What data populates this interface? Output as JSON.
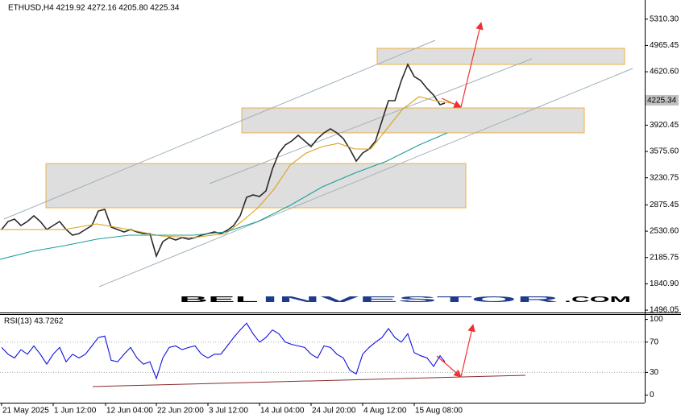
{
  "chart_data": [
    {
      "type": "line",
      "title": "ETHUSD,H4  4219.92 4272.16 4205.80 4225.34",
      "last_price_label": "4225.34",
      "watermark": [
        "BEL",
        "INVESTOR",
        ".COM"
      ],
      "xlim": [
        0,
        800
      ],
      "ylim": [
        1465,
        5540
      ],
      "yticks": [
        {
          "value": 5310.3,
          "label": "5310.30"
        },
        4965.45,
        {
          "value": 4620.6,
          "label": "4620.60"
        },
        3920.45,
        {
          "value": 3575.6,
          "label": "3575.60"
        },
        3230.75,
        2875.45,
        {
          "value": 2530.6,
          "label": "2530.60"
        },
        2185.75,
        {
          "value": 1840.9,
          "label": "1840.90"
        },
        1496.05
      ],
      "series": [
        {
          "color": "#2a2a2a",
          "x": [
            2,
            10,
            18,
            26,
            34,
            42,
            50,
            58,
            66,
            74,
            82,
            90,
            98,
            106,
            114,
            122,
            130,
            138,
            146,
            154,
            162,
            170,
            178,
            186,
            194,
            202,
            210,
            218,
            226,
            234,
            242,
            250,
            258,
            266,
            274,
            282,
            290,
            298,
            306,
            314,
            322,
            330,
            338,
            346,
            354,
            362,
            370,
            378,
            386,
            394,
            402,
            410,
            418,
            426,
            434,
            442,
            450,
            458,
            466,
            474,
            482,
            490,
            498,
            506,
            514,
            522,
            530,
            538,
            546,
            552
          ],
          "values": [
            2552,
            2658,
            2690,
            2605,
            2658,
            2732,
            2658,
            2552,
            2605,
            2658,
            2552,
            2478,
            2500,
            2552,
            2605,
            2795,
            2816,
            2584,
            2552,
            2521,
            2552,
            2521,
            2500,
            2500,
            2204,
            2394,
            2447,
            2415,
            2447,
            2426,
            2447,
            2478,
            2500,
            2521,
            2500,
            2542,
            2605,
            2732,
            2975,
            3006,
            2985,
            3059,
            3344,
            3555,
            3661,
            3714,
            3788,
            3714,
            3640,
            3745,
            3819,
            3872,
            3819,
            3745,
            3608,
            3450,
            3555,
            3608,
            3714,
            3978,
            4241,
            4241,
            4505,
            4717,
            4558,
            4505,
            4400,
            4315,
            4189,
            4210
          ]
        },
        {
          "color": "#d9a21c",
          "x": [
            0,
            40,
            80,
            120,
            160,
            200,
            240,
            280,
            300,
            320,
            340,
            360,
            380,
            400,
            420,
            440,
            460,
            480,
            500,
            520,
            540,
            560
          ],
          "values": [
            2552,
            2552,
            2552,
            2626,
            2552,
            2468,
            2447,
            2500,
            2658,
            2837,
            3080,
            3397,
            3555,
            3640,
            3682,
            3608,
            3608,
            3872,
            4136,
            4294,
            4241,
            4210
          ]
        },
        {
          "color": "#1a9e9a",
          "x": [
            0,
            40,
            80,
            120,
            160,
            200,
            240,
            280,
            320,
            360,
            400,
            440,
            480,
            520,
            555
          ],
          "values": [
            2162,
            2267,
            2341,
            2426,
            2478,
            2478,
            2478,
            2521,
            2658,
            2869,
            3112,
            3291,
            3450,
            3661,
            3819
          ]
        }
      ]
    },
    {
      "type": "line",
      "title": "RSI(13) 43.7262",
      "xlim": [
        0,
        800
      ],
      "ylim": [
        -10,
        107
      ],
      "yticks": [
        100,
        70,
        30,
        0
      ],
      "xticks": [
        {
          "value": 2,
          "label": "21 May 2025"
        },
        {
          "value": 66,
          "label": "1 Jun 12:00"
        },
        {
          "value": 131,
          "label": "12 Jun 04:00"
        },
        {
          "value": 194,
          "label": "22 Jun 20:00"
        },
        {
          "value": 258,
          "label": "3 Jul 12:00"
        },
        {
          "value": 322,
          "label": "14 Jul 04:00"
        },
        {
          "value": 386,
          "label": "24 Jul 20:00"
        },
        {
          "value": 450,
          "label": "4 Aug 12:00"
        },
        {
          "value": 514,
          "label": "15 Aug 08:00"
        }
      ],
      "series": [
        {
          "color": "#1010e0",
          "x": [
            2,
            10,
            18,
            26,
            34,
            42,
            50,
            58,
            66,
            74,
            82,
            90,
            98,
            106,
            114,
            122,
            130,
            138,
            146,
            154,
            162,
            170,
            178,
            186,
            194,
            202,
            210,
            218,
            226,
            234,
            242,
            250,
            258,
            266,
            274,
            282,
            290,
            298,
            306,
            314,
            322,
            330,
            338,
            346,
            354,
            362,
            370,
            378,
            386,
            394,
            402,
            410,
            418,
            426,
            434,
            442,
            450,
            458,
            466,
            474,
            482,
            490,
            498,
            506,
            514,
            522,
            530,
            538,
            546,
            552
          ],
          "values": [
            63,
            54,
            49,
            60,
            54,
            65,
            54,
            41,
            54,
            63,
            44,
            54,
            49,
            54,
            65,
            76,
            78,
            46,
            44,
            54,
            63,
            49,
            41,
            44,
            22,
            49,
            63,
            65,
            60,
            63,
            65,
            54,
            49,
            54,
            54,
            65,
            76,
            86,
            95,
            81,
            70,
            76,
            86,
            81,
            70,
            67,
            65,
            63,
            54,
            49,
            65,
            63,
            54,
            49,
            33,
            28,
            54,
            63,
            70,
            76,
            88,
            76,
            70,
            81,
            56,
            52,
            49,
            38,
            52,
            44
          ]
        }
      ]
    }
  ]
}
